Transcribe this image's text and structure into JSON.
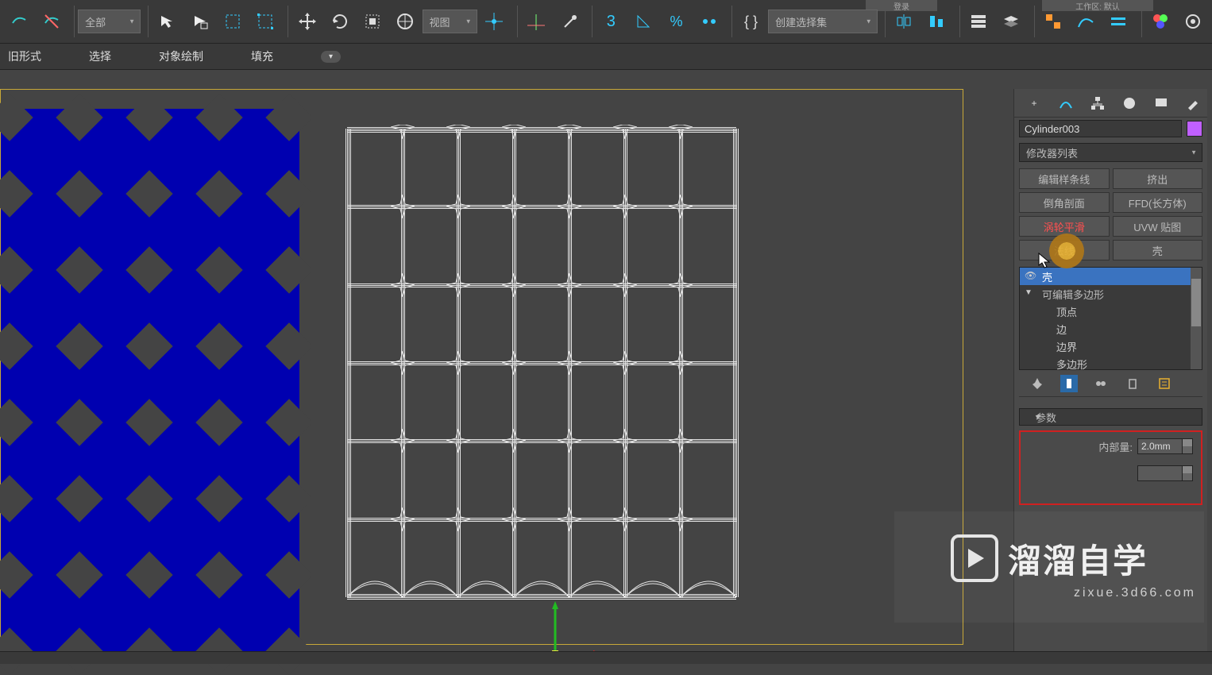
{
  "top_labels": {
    "login": "登录",
    "workspace": "工作区: 默认"
  },
  "toolbar": {
    "filter_dropdown": "全部",
    "coord_dropdown": "视图",
    "selset_dropdown": "创建选择集"
  },
  "tabs": {
    "t1": "旧形式",
    "t2": "选择",
    "t3": "对象绘制",
    "t4": "填充"
  },
  "object_name": "Cylinder003",
  "modifier_dropdown": "修改器列表",
  "mod_buttons": {
    "b1": "编辑样条线",
    "b2": "挤出",
    "b3": "倒角剖面",
    "b4": "FFD(长方体)",
    "b5": "涡轮平滑",
    "b6": "UVW 贴图",
    "b7": "法线",
    "b8": "壳"
  },
  "stack": {
    "s1": "壳",
    "s2": "可编辑多边形",
    "sub1": "顶点",
    "sub2": "边",
    "sub3": "边界",
    "sub4": "多边形"
  },
  "params_header": "参数",
  "param1_label": "内部量:",
  "param1_value": "2.0mm",
  "watermark": {
    "title": "溜溜自学",
    "url": "zixue.3d66.com"
  },
  "viewport": {
    "left_bg": "#0000b0",
    "diamond_color": "#444444",
    "wire_color": "#e6e6e6",
    "grid_cols": 7,
    "grid_rows": 7,
    "star_rows": 6,
    "star_cols": 6
  },
  "colors": {
    "swatch": "#c060ff",
    "selected": "#3a73c0",
    "highlight_border": "#d02020"
  }
}
